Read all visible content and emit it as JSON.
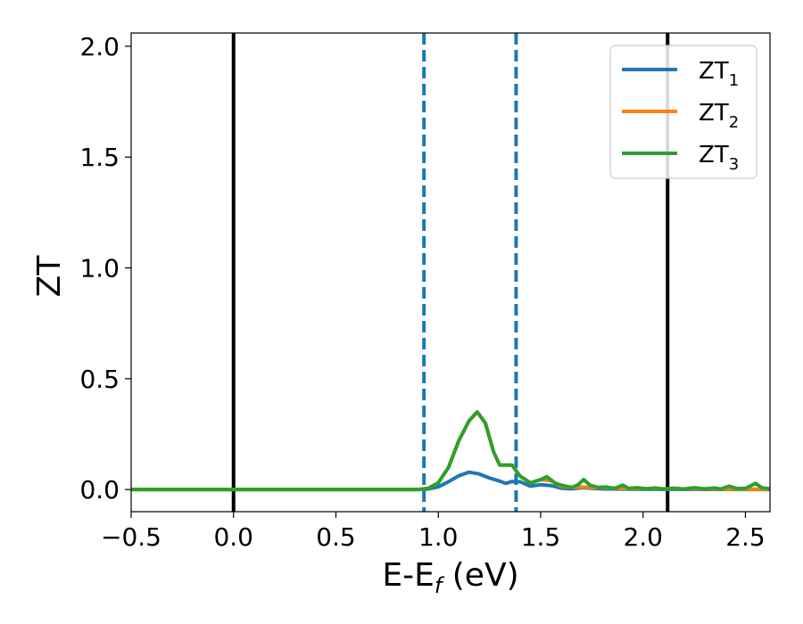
{
  "chart_data": {
    "type": "line",
    "xlabel": {
      "base": "E-E",
      "sub": "f",
      "rest": " (eV)"
    },
    "ylabel": "ZT",
    "xlim": [
      -0.5,
      2.62
    ],
    "ylim": [
      -0.1,
      2.06
    ],
    "xticks": [
      -0.5,
      0.0,
      0.5,
      1.0,
      1.5,
      2.0,
      2.5
    ],
    "xtick_labels": [
      "−0.5",
      "0.0",
      "0.5",
      "1.0",
      "1.5",
      "2.0",
      "2.5"
    ],
    "yticks": [
      0.0,
      0.5,
      1.0,
      1.5,
      2.0
    ],
    "ytick_labels": [
      "0.0",
      "0.5",
      "1.0",
      "1.5",
      "2.0"
    ],
    "grid": false,
    "legend_position": "top-right",
    "vlines": [
      {
        "x": 0.0,
        "style": "solid",
        "color": "#000000"
      },
      {
        "x": 2.12,
        "style": "solid",
        "color": "#000000"
      },
      {
        "x": 0.93,
        "style": "dashed",
        "color": "#1f77b4"
      },
      {
        "x": 1.38,
        "style": "dashed",
        "color": "#1f77b4"
      }
    ],
    "series": [
      {
        "name": "ZT",
        "sub": "1",
        "color": "#1f77b4",
        "points": [
          [
            -0.5,
            0
          ],
          [
            0.9,
            0
          ],
          [
            0.95,
            0.002
          ],
          [
            1.0,
            0.012
          ],
          [
            1.05,
            0.035
          ],
          [
            1.1,
            0.062
          ],
          [
            1.15,
            0.078
          ],
          [
            1.2,
            0.07
          ],
          [
            1.25,
            0.052
          ],
          [
            1.3,
            0.038
          ],
          [
            1.33,
            0.028
          ],
          [
            1.36,
            0.036
          ],
          [
            1.4,
            0.035
          ],
          [
            1.45,
            0.015
          ],
          [
            1.5,
            0.022
          ],
          [
            1.55,
            0.018
          ],
          [
            1.6,
            0.006
          ],
          [
            1.65,
            0.003
          ],
          [
            1.7,
            0.008
          ],
          [
            1.8,
            0.003
          ],
          [
            2.0,
            0.001
          ],
          [
            2.62,
            0
          ]
        ]
      },
      {
        "name": "ZT",
        "sub": "2",
        "color": "#ff7f0e",
        "points": [
          [
            -0.5,
            0
          ],
          [
            0.9,
            0
          ],
          [
            0.95,
            0.005
          ],
          [
            1.0,
            0.03
          ],
          [
            1.05,
            0.1
          ],
          [
            1.1,
            0.22
          ],
          [
            1.15,
            0.31
          ],
          [
            1.19,
            0.35
          ],
          [
            1.23,
            0.3
          ],
          [
            1.27,
            0.17
          ],
          [
            1.3,
            0.11
          ],
          [
            1.33,
            0.11
          ],
          [
            1.36,
            0.11
          ],
          [
            1.4,
            0.06
          ],
          [
            1.45,
            0.03
          ],
          [
            1.5,
            0.045
          ],
          [
            1.55,
            0.04
          ],
          [
            1.6,
            0.015
          ],
          [
            1.65,
            0.01
          ],
          [
            1.7,
            0.012
          ],
          [
            1.75,
            0.008
          ],
          [
            1.8,
            0.01
          ],
          [
            1.9,
            0.005
          ],
          [
            2.0,
            0.004
          ],
          [
            2.2,
            0.003
          ],
          [
            2.4,
            0.002
          ],
          [
            2.62,
            0.001
          ]
        ]
      },
      {
        "name": "ZT",
        "sub": "3",
        "color": "#2ca02c",
        "points": [
          [
            -0.5,
            0
          ],
          [
            0.9,
            0
          ],
          [
            0.95,
            0.005
          ],
          [
            1.0,
            0.03
          ],
          [
            1.05,
            0.1
          ],
          [
            1.1,
            0.22
          ],
          [
            1.15,
            0.31
          ],
          [
            1.19,
            0.35
          ],
          [
            1.23,
            0.3
          ],
          [
            1.27,
            0.17
          ],
          [
            1.3,
            0.11
          ],
          [
            1.33,
            0.11
          ],
          [
            1.36,
            0.11
          ],
          [
            1.4,
            0.06
          ],
          [
            1.45,
            0.03
          ],
          [
            1.5,
            0.045
          ],
          [
            1.53,
            0.058
          ],
          [
            1.57,
            0.03
          ],
          [
            1.6,
            0.02
          ],
          [
            1.65,
            0.01
          ],
          [
            1.68,
            0.02
          ],
          [
            1.71,
            0.045
          ],
          [
            1.74,
            0.02
          ],
          [
            1.78,
            0.01
          ],
          [
            1.82,
            0.012
          ],
          [
            1.86,
            0.004
          ],
          [
            1.9,
            0.02
          ],
          [
            1.93,
            0.005
          ],
          [
            1.97,
            0.008
          ],
          [
            2.02,
            0.003
          ],
          [
            2.06,
            0.007
          ],
          [
            2.1,
            0.002
          ],
          [
            2.15,
            0.006
          ],
          [
            2.2,
            0.002
          ],
          [
            2.25,
            0.008
          ],
          [
            2.3,
            0.003
          ],
          [
            2.35,
            0.007
          ],
          [
            2.38,
            0.002
          ],
          [
            2.42,
            0.015
          ],
          [
            2.46,
            0.004
          ],
          [
            2.5,
            0.005
          ],
          [
            2.55,
            0.028
          ],
          [
            2.58,
            0.008
          ],
          [
            2.62,
            0.003
          ]
        ]
      }
    ]
  }
}
